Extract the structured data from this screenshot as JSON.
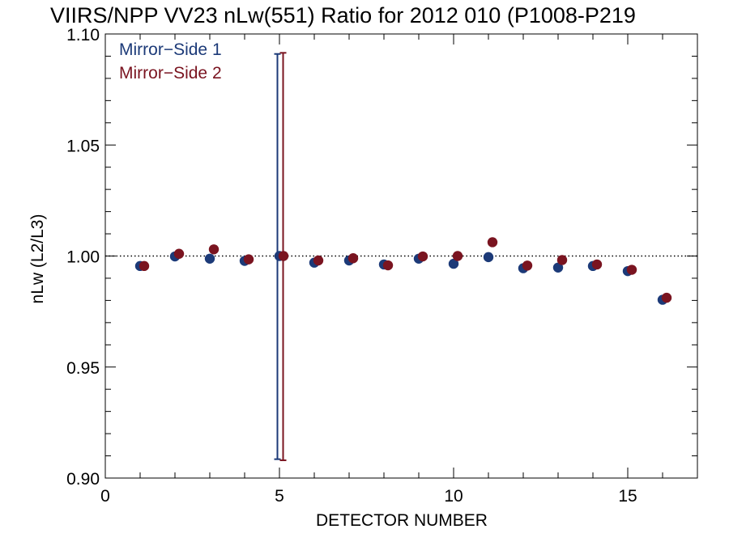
{
  "chart_data": {
    "type": "scatter",
    "title": "VIIRS/NPP VV23 nLw(551) Ratio for 2012 010 (P1008-P219",
    "xlabel": "DETECTOR NUMBER",
    "ylabel": "nLw (L2/L3)",
    "xlim": [
      0,
      17
    ],
    "ylim": [
      0.9,
      1.1
    ],
    "x_ticks": [
      0,
      5,
      10,
      15
    ],
    "x_tick_labels": [
      "0",
      "5",
      "10",
      "15"
    ],
    "y_ticks": [
      0.9,
      0.95,
      1.0,
      1.05,
      1.1
    ],
    "y_tick_labels": [
      "0.90",
      "0.95",
      "1.00",
      "1.05",
      "1.10"
    ],
    "reference_line": {
      "y": 1.0,
      "style": "dotted"
    },
    "legend_placement": "top-left",
    "grid": false,
    "series": [
      {
        "name": "Mirror−Side 1",
        "color": "#1c3a78",
        "x": [
          1,
          2,
          3,
          4,
          5,
          6,
          7,
          8,
          9,
          10,
          11,
          12,
          13,
          14,
          15,
          16
        ],
        "values": [
          0.9955,
          0.9998,
          0.9988,
          0.9978,
          1.0,
          0.997,
          0.998,
          0.9962,
          0.9988,
          0.9965,
          0.9995,
          0.9945,
          0.9948,
          0.9955,
          0.9932,
          0.9803
        ],
        "error_bar": {
          "x": 5,
          "low": 0.9085,
          "high": 1.091
        }
      },
      {
        "name": "Mirror−Side 2",
        "color": "#7a1420",
        "x": [
          1,
          2,
          3,
          4,
          5,
          6,
          7,
          8,
          9,
          10,
          11,
          12,
          13,
          14,
          15,
          16
        ],
        "values": [
          0.9955,
          1.001,
          1.003,
          0.9985,
          1.0,
          0.998,
          0.999,
          0.9958,
          0.9998,
          1.0,
          1.0062,
          0.9957,
          0.9982,
          0.9962,
          0.9938,
          0.9812
        ],
        "error_bar": {
          "x": 5,
          "low": 0.908,
          "high": 1.0915
        }
      }
    ]
  }
}
